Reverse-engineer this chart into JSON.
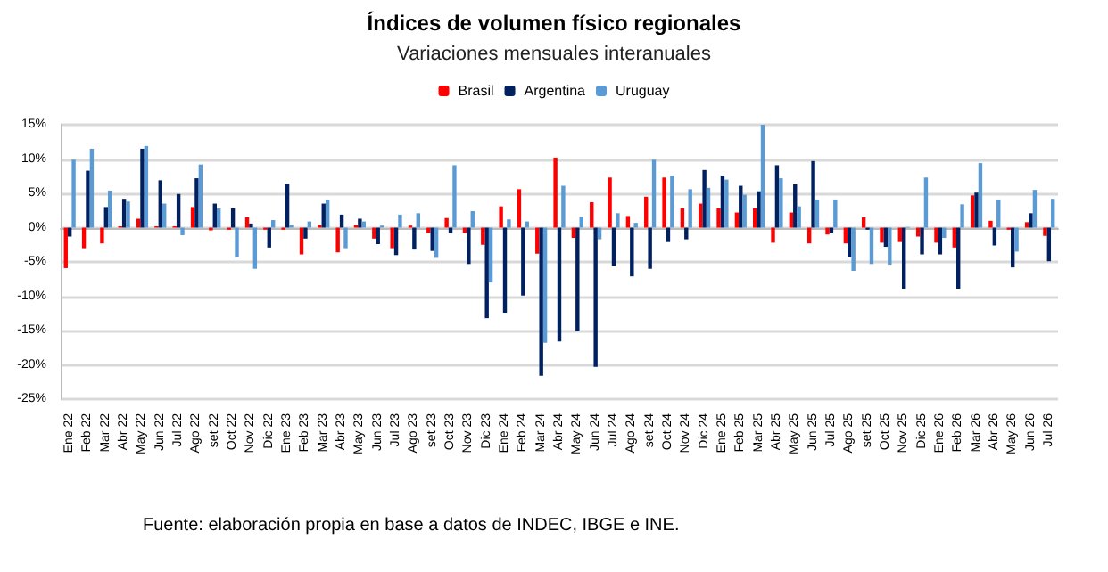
{
  "chart_data": {
    "type": "bar",
    "title": "Índices de volumen físico regionales",
    "subtitle": "Variaciones mensuales interanuales",
    "categories": [
      "Ene 22",
      "Feb 22",
      "Mar 22",
      "Abr 22",
      "May 22",
      "Jun 22",
      "Jul 22",
      "Ago 22",
      "set 22",
      "Oct 22",
      "Nov 22",
      "Dic 22",
      "Ene 23",
      "Feb 23",
      "Mar 23",
      "Abr 23",
      "May 23",
      "Jun 23",
      "Jul 23",
      "Ago 23",
      "set 23",
      "Oct 23",
      "Nov 23",
      "Dic 23",
      "Ene 24",
      "Feb 24",
      "Mar 24",
      "Abr 24",
      "May 24",
      "Jun 24",
      "Jul 24",
      "Ago 24",
      "set 24",
      "Oct 24",
      "Nov 24",
      "Dic 24",
      "Ene 25",
      "Feb 25",
      "Mar 25",
      "Abr 25",
      "May 25",
      "Jun 25",
      "Jul 25",
      "Ago 25",
      "set 25",
      "Oct 25",
      "Nov 25",
      "Dic 25",
      "Ene 26",
      "Feb 26",
      "Mar 26",
      "Abr 26",
      "May 26",
      "Jun 26",
      "Jul 26"
    ],
    "series": [
      {
        "name": "Brasil",
        "color": "#ff0000",
        "values": [
          -5.9,
          -3.0,
          -2.3,
          0.2,
          1.3,
          0.2,
          0.2,
          3.0,
          -0.4,
          -0.3,
          1.5,
          -0.3,
          -0.3,
          -3.9,
          0.4,
          -3.6,
          0.4,
          -1.6,
          -3.0,
          0.3,
          -0.8,
          1.4,
          -0.8,
          -2.5,
          3.1,
          5.6,
          -3.8,
          10.2,
          -1.5,
          3.7,
          7.3,
          1.7,
          4.5,
          7.3,
          2.8,
          3.5,
          2.8,
          2.2,
          2.8,
          -2.2,
          2.2,
          -2.3,
          -1.0,
          -2.3,
          1.5,
          -2.2,
          -2.1,
          -1.3,
          -2.2,
          -2.9,
          4.7,
          1.0,
          -0.3,
          0.8,
          -1.2
        ]
      },
      {
        "name": "Argentina",
        "color": "#002060",
        "values": [
          -1.3,
          8.3,
          3.0,
          4.2,
          11.5,
          6.9,
          4.9,
          7.2,
          3.5,
          2.8,
          0.6,
          -2.9,
          6.4,
          -1.6,
          3.5,
          1.9,
          1.3,
          -2.4,
          -4.0,
          -3.2,
          -3.4,
          -0.8,
          -5.3,
          -13.2,
          -12.4,
          -9.9,
          -21.6,
          -16.6,
          -15.1,
          -20.3,
          -5.6,
          -7.1,
          -6.0,
          -2.1,
          -1.7,
          8.4,
          7.6,
          6.1,
          5.3,
          9.1,
          6.3,
          9.7,
          -0.8,
          -4.3,
          -0.3,
          -2.8,
          -8.9,
          -3.9,
          -3.9,
          -8.9,
          5.1,
          -2.6,
          -5.8,
          2.1,
          -4.9
        ]
      },
      {
        "name": "Uruguay",
        "color": "#5b9bd5",
        "values": [
          9.9,
          11.5,
          5.4,
          3.8,
          11.9,
          3.5,
          -1.1,
          9.2,
          2.8,
          -4.3,
          -6.0,
          1.1,
          0.4,
          0.9,
          4.1,
          -3.0,
          0.9,
          0.3,
          1.9,
          2.1,
          -4.4,
          9.1,
          2.4,
          -8.0,
          1.2,
          0.9,
          -16.8,
          6.1,
          1.6,
          -1.7,
          2.1,
          0.7,
          9.9,
          7.6,
          5.6,
          5.8,
          7.0,
          4.8,
          15.0,
          7.2,
          3.1,
          4.1,
          4.1,
          -6.3,
          -5.3,
          -5.4,
          0.1,
          7.3,
          -1.5,
          3.4,
          9.4,
          4.1,
          -3.5,
          5.5,
          4.2
        ]
      }
    ],
    "ylim": [
      -25,
      15
    ],
    "yticks": [
      {
        "value": -25,
        "label": "-25%"
      },
      {
        "value": -20,
        "label": "-20%"
      },
      {
        "value": -15,
        "label": "-15%"
      },
      {
        "value": -10,
        "label": "-10%"
      },
      {
        "value": -5,
        "label": "-5%"
      },
      {
        "value": 0,
        "label": "0%"
      },
      {
        "value": 5,
        "label": "5%"
      },
      {
        "value": 10,
        "label": "10%"
      },
      {
        "value": 15,
        "label": "15%"
      }
    ],
    "grid": "y",
    "legend": "top",
    "annotations": [
      "Fuente: elaboración propia en base a datos de INDEC, IBGE e INE."
    ]
  }
}
